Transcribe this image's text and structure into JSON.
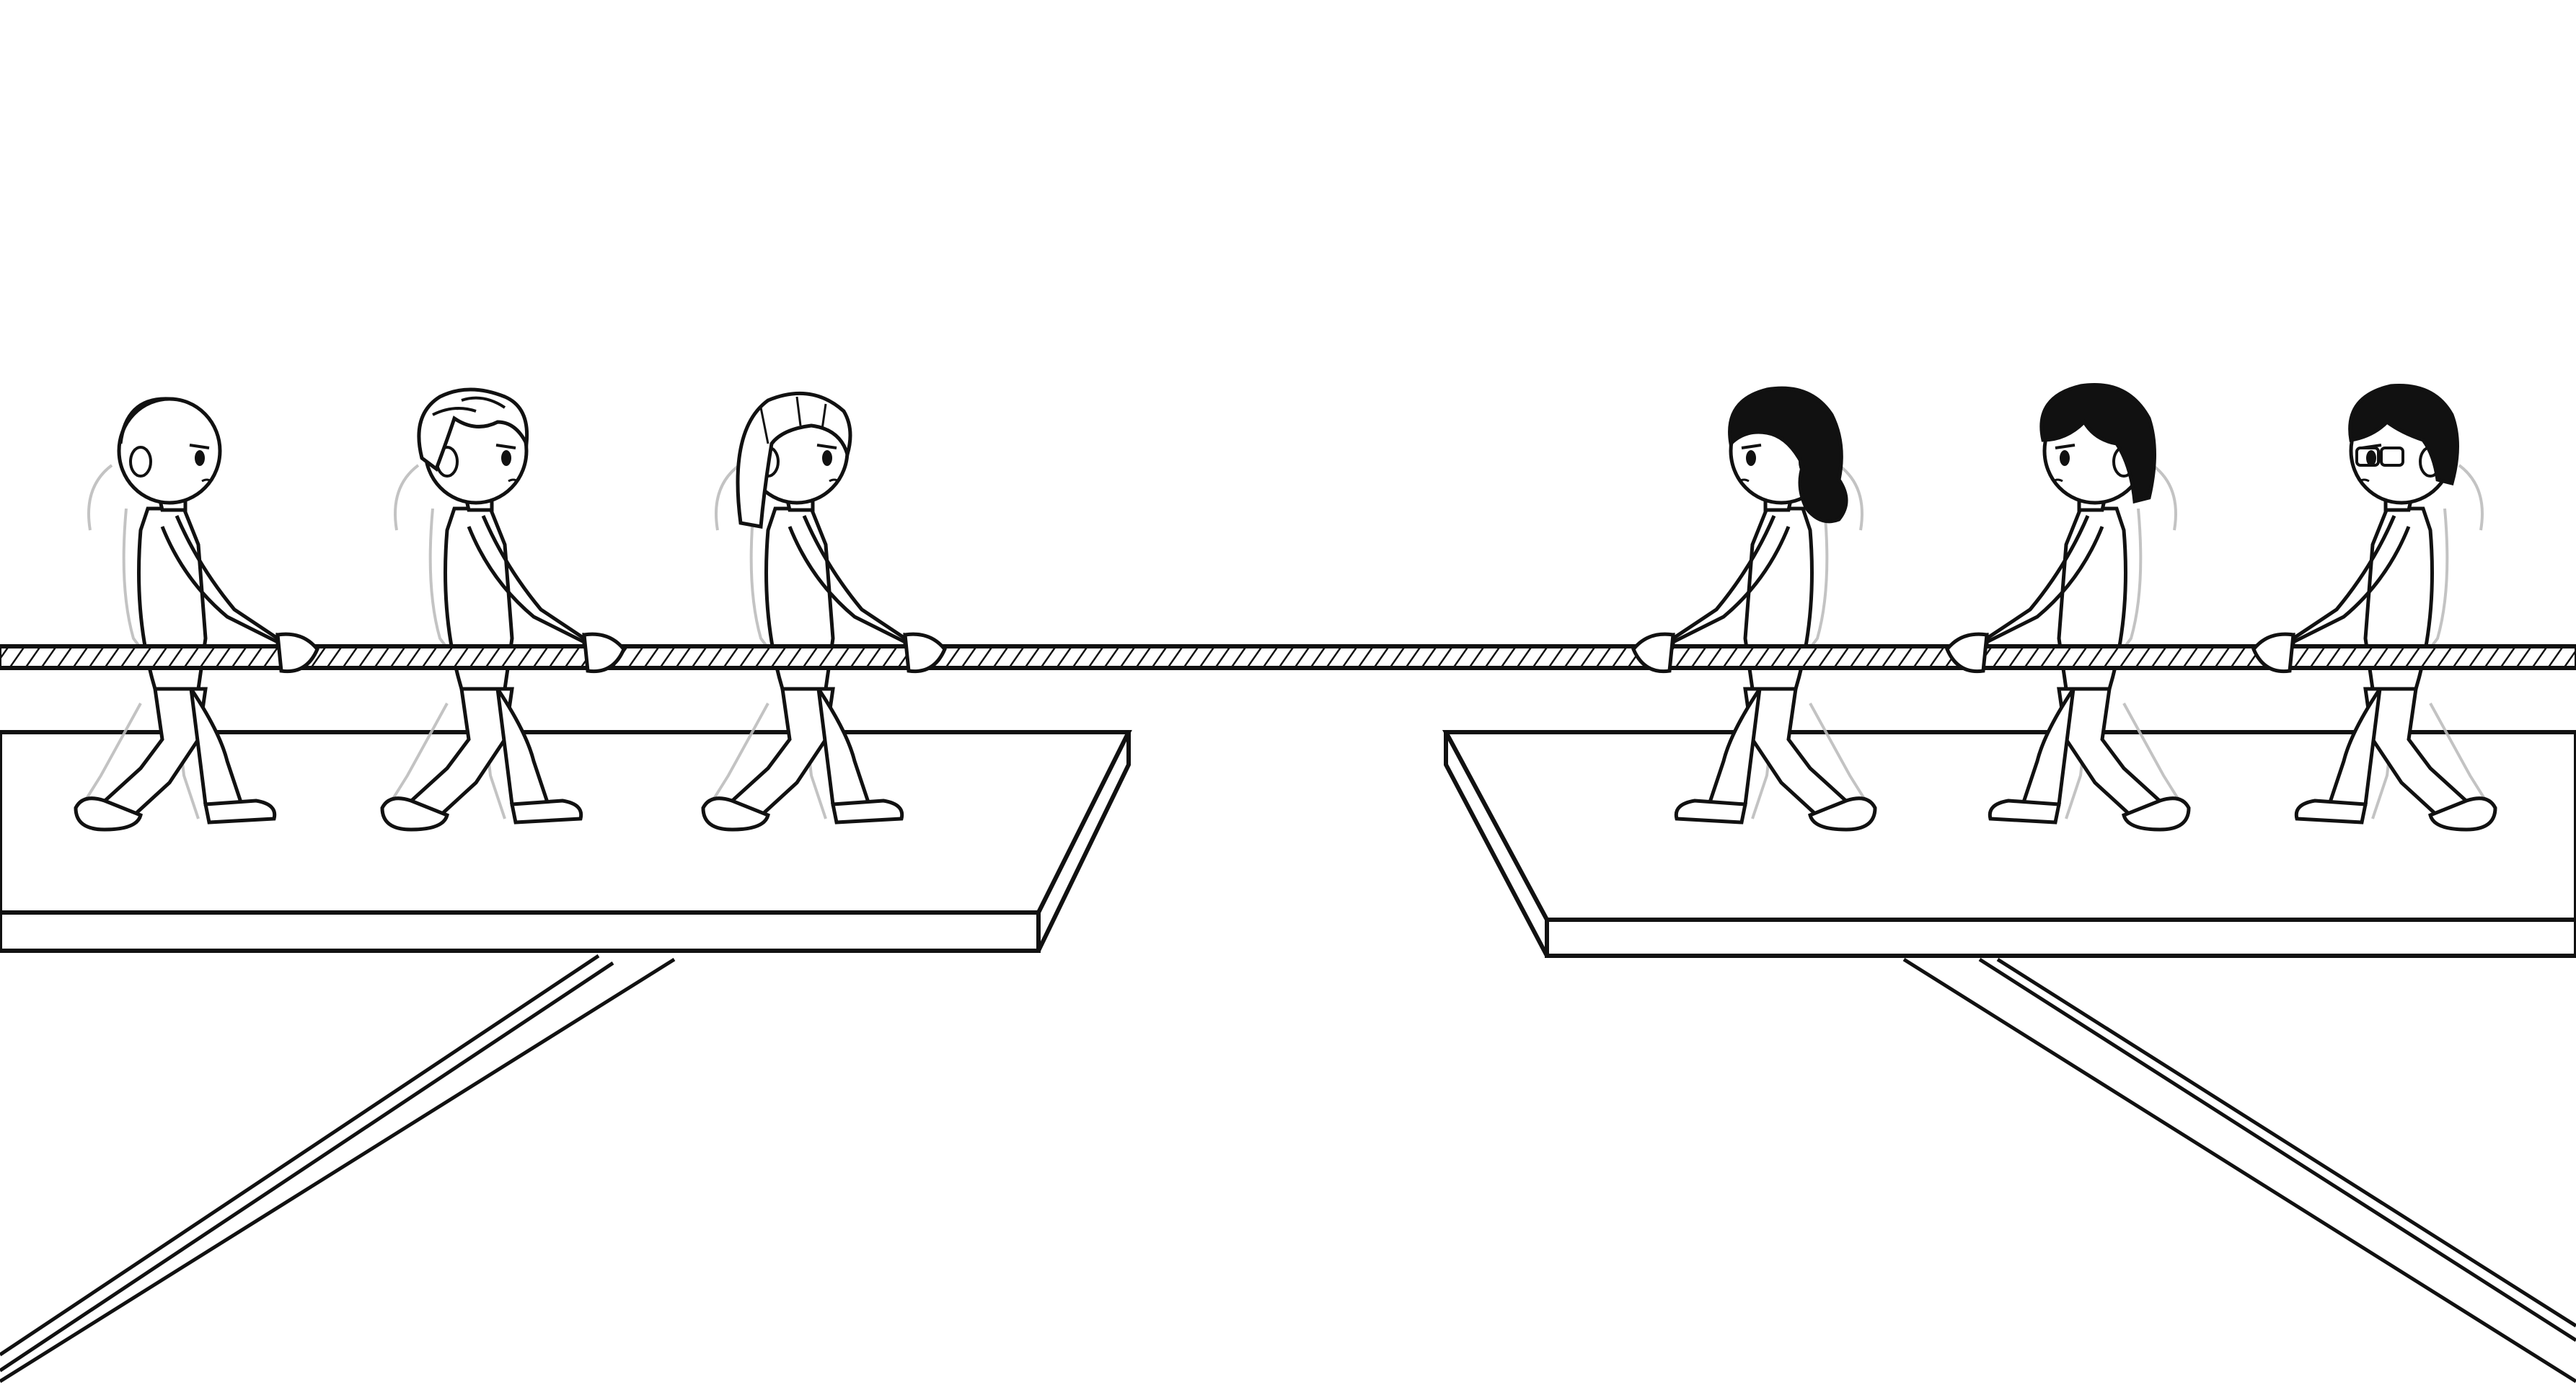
{
  "scene": {
    "background": "#ffffff",
    "ink": "#111111",
    "ghost": "#bdbdbd",
    "hair_dark": "#111111",
    "hair_light": "#ffffff"
  },
  "teams": {
    "left": {
      "facing": "right",
      "members": [
        {
          "hair": "bald"
        },
        {
          "hair": "messy-light"
        },
        {
          "hair": "bob-light"
        }
      ]
    },
    "right": {
      "facing": "left",
      "members": [
        {
          "hair": "curly-dark"
        },
        {
          "hair": "medium-dark"
        },
        {
          "hair": "short-dark-glasses"
        }
      ]
    }
  }
}
